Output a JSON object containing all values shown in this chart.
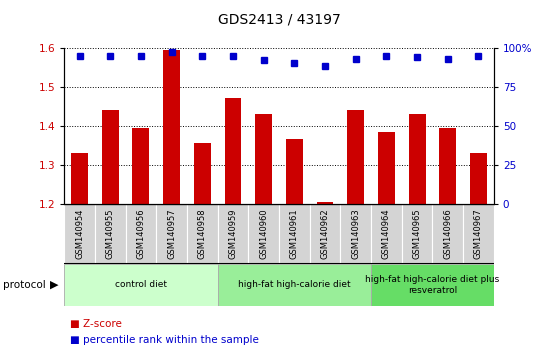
{
  "title": "GDS2413 / 43197",
  "samples": [
    "GSM140954",
    "GSM140955",
    "GSM140956",
    "GSM140957",
    "GSM140958",
    "GSM140959",
    "GSM140960",
    "GSM140961",
    "GSM140962",
    "GSM140963",
    "GSM140964",
    "GSM140965",
    "GSM140966",
    "GSM140967"
  ],
  "zscore": [
    1.33,
    1.44,
    1.395,
    1.595,
    1.355,
    1.47,
    1.43,
    1.365,
    1.205,
    1.44,
    1.385,
    1.43,
    1.395,
    1.33
  ],
  "percentile": [
    95,
    95,
    95,
    97,
    95,
    95,
    92,
    90,
    88,
    93,
    95,
    94,
    93,
    95
  ],
  "bar_color": "#cc0000",
  "dot_color": "#0000cc",
  "ylim_left": [
    1.2,
    1.6
  ],
  "ylim_right": [
    0,
    100
  ],
  "yticks_left": [
    1.2,
    1.3,
    1.4,
    1.5,
    1.6
  ],
  "yticks_right": [
    0,
    25,
    50,
    75,
    100
  ],
  "right_tick_labels": [
    "0",
    "25",
    "50",
    "75",
    "100%"
  ],
  "groups": [
    {
      "label": "control diet",
      "start": 0,
      "end": 4,
      "color": "#ccffcc"
    },
    {
      "label": "high-fat high-calorie diet",
      "start": 5,
      "end": 9,
      "color": "#99ee99"
    },
    {
      "label": "high-fat high-calorie diet plus\nresveratrol",
      "start": 10,
      "end": 13,
      "color": "#66dd66"
    }
  ],
  "protocol_label": "protocol",
  "legend_zscore": "Z-score",
  "legend_percentile": "percentile rank within the sample",
  "background_color": "#ffffff",
  "tick_area_color": "#d0d0d0",
  "grid_color": "#000000",
  "grid_linestyle": "dotted",
  "grid_linewidth": 0.7
}
